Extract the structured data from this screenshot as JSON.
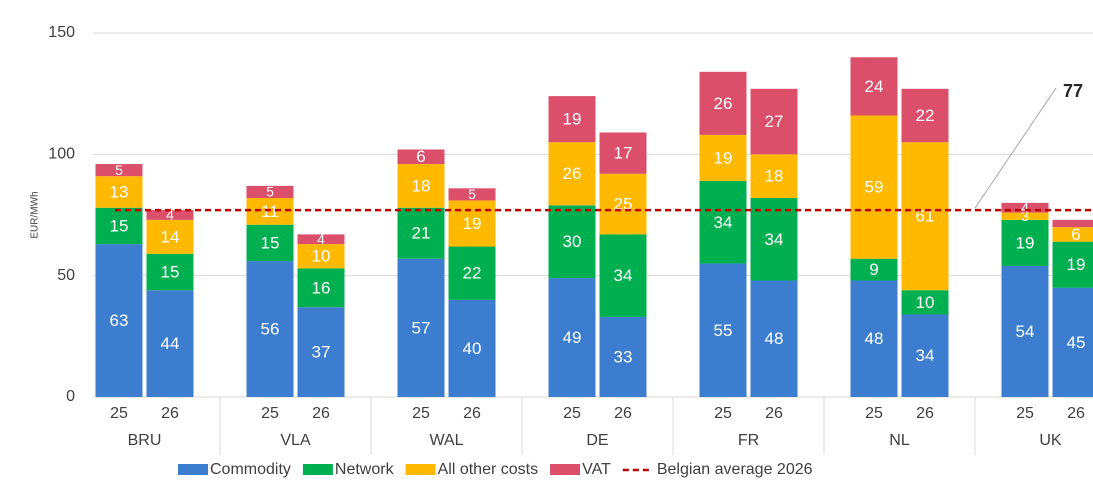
{
  "chart_data": {
    "type": "stacked_bar",
    "y_label": "EUR/MWh",
    "groups": [
      "BRU",
      "VLA",
      "WAL",
      "DE",
      "FR",
      "NL",
      "UK"
    ],
    "categories": [
      "25",
      "26",
      "25",
      "26",
      "25",
      "26",
      "25",
      "26",
      "25",
      "26",
      "25",
      "26",
      "25",
      "26"
    ],
    "series": [
      {
        "name": "Commodity",
        "color": "#3c7dd0",
        "values": [
          63,
          44,
          56,
          37,
          57,
          40,
          49,
          33,
          55,
          48,
          48,
          34,
          54,
          45
        ]
      },
      {
        "name": "Network",
        "color": "#00b050",
        "values": [
          15,
          15,
          15,
          16,
          21,
          22,
          30,
          34,
          34,
          34,
          9,
          10,
          19,
          19
        ]
      },
      {
        "name": "All other costs",
        "color": "#ffb900",
        "values": [
          13,
          14,
          11,
          10,
          18,
          19,
          26,
          25,
          19,
          18,
          59,
          61,
          3,
          6
        ]
      },
      {
        "name": "VAT",
        "color": "#dc4f6b",
        "values": [
          5,
          4,
          5,
          4,
          6,
          5,
          19,
          17,
          26,
          27,
          24,
          22,
          4,
          3
        ],
        "value_labels": [
          "5",
          "4",
          "5",
          "4",
          "6",
          "5",
          "19",
          "17",
          "26",
          "27",
          "24",
          "22",
          "4",
          null
        ]
      }
    ],
    "reference_line": {
      "name": "Belgian average 2026",
      "value": 77,
      "color": "#c00000"
    },
    "ylim": [
      0,
      150
    ],
    "yticks": [
      0,
      50,
      100,
      150
    ],
    "grid": true
  }
}
